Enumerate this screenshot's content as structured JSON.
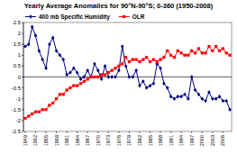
{
  "chart_data": {
    "type": "line",
    "title": "Yearly Average Anomalies for 90°N-90°S; 0-360 (1950-2008)",
    "x": [
      1949,
      1950,
      1951,
      1952,
      1953,
      1954,
      1955,
      1956,
      1957,
      1958,
      1959,
      1960,
      1961,
      1962,
      1963,
      1964,
      1965,
      1966,
      1967,
      1968,
      1969,
      1970,
      1971,
      1972,
      1973,
      1974,
      1975,
      1976,
      1977,
      1978,
      1979,
      1980,
      1981,
      1982,
      1983,
      1984,
      1985,
      1986,
      1987,
      1988,
      1989,
      1990,
      1991,
      1992,
      1993,
      1994,
      1995,
      1996,
      1997,
      1998,
      1999,
      2000,
      2001,
      2002,
      2003,
      2004,
      2005,
      2006,
      2007,
      2008
    ],
    "series": [
      {
        "name": "400 mb Specific Humidity",
        "color": "#000080",
        "marker": "diamond",
        "values": [
          1.4,
          1.5,
          2.3,
          1.9,
          1.2,
          0.8,
          0.4,
          1.5,
          1.8,
          1.2,
          1.0,
          0.8,
          0.1,
          0.2,
          0.4,
          0.2,
          -0.1,
          0.0,
          0.3,
          0.0,
          0.6,
          0.3,
          -0.1,
          0.5,
          0.0,
          0.0,
          0.0,
          0.3,
          1.4,
          0.5,
          0.0,
          0.0,
          0.3,
          -0.4,
          -0.2,
          -0.5,
          -0.4,
          -0.3,
          0.6,
          0.4,
          -0.3,
          -0.5,
          -0.9,
          -1.0,
          -0.9,
          -0.9,
          -0.8,
          -1.0,
          0.0,
          -0.6,
          -0.8,
          -1.0,
          -1.1,
          -0.7,
          -1.0,
          -1.0,
          -0.9,
          -1.1,
          -1.1,
          -1.5
        ]
      },
      {
        "name": "OLR",
        "color": "#ff0000",
        "marker": "square",
        "values": [
          -1.9,
          -1.8,
          -1.7,
          -1.6,
          -1.6,
          -1.5,
          -1.5,
          -1.3,
          -1.2,
          -1.0,
          -0.8,
          -0.8,
          -0.6,
          -0.5,
          -0.4,
          -0.4,
          -0.3,
          -0.2,
          -0.1,
          0.0,
          0.0,
          0.0,
          0.1,
          0.1,
          0.2,
          0.3,
          0.4,
          0.5,
          0.6,
          0.9,
          0.7,
          0.8,
          0.8,
          0.7,
          0.8,
          0.9,
          0.7,
          0.8,
          0.7,
          0.8,
          0.9,
          1.2,
          1.0,
          0.9,
          1.2,
          1.1,
          1.0,
          1.0,
          1.2,
          1.1,
          1.3,
          1.1,
          1.1,
          1.4,
          1.2,
          1.4,
          1.2,
          1.3,
          1.1,
          1.0
        ]
      }
    ],
    "xlim": [
      1948.5,
      2008.5
    ],
    "xticks": [
      1949,
      1952,
      1955,
      1958,
      1961,
      1964,
      1967,
      1970,
      1973,
      1976,
      1979,
      1982,
      1985,
      1988,
      1991,
      1994,
      1997,
      2000,
      2003,
      2006
    ],
    "ylim": [
      -2.5,
      2.5
    ],
    "yticks": [
      -2.5,
      -2,
      -1.5,
      -1,
      -0.5,
      0,
      0.5,
      1,
      1.5,
      2,
      2.5
    ],
    "grid": false,
    "legend": "upper left"
  }
}
